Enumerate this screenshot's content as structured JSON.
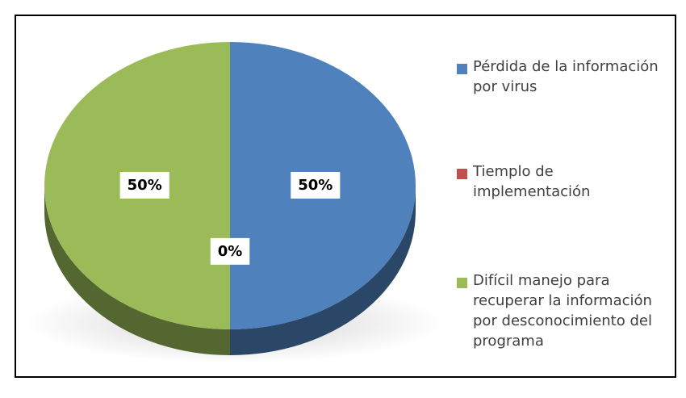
{
  "chart_data": {
    "type": "pie",
    "categories": [
      "Pérdida de la información por virus",
      "Tiemplo de implementación",
      "Difícil manejo para recuperar la información por desconocimiento del programa"
    ],
    "values": [
      50,
      0,
      50
    ],
    "value_labels": [
      "50%",
      "0%",
      "50%"
    ],
    "colors": [
      "#4f81bd",
      "#c0504d",
      "#9bbb59"
    ],
    "legend": "right"
  }
}
